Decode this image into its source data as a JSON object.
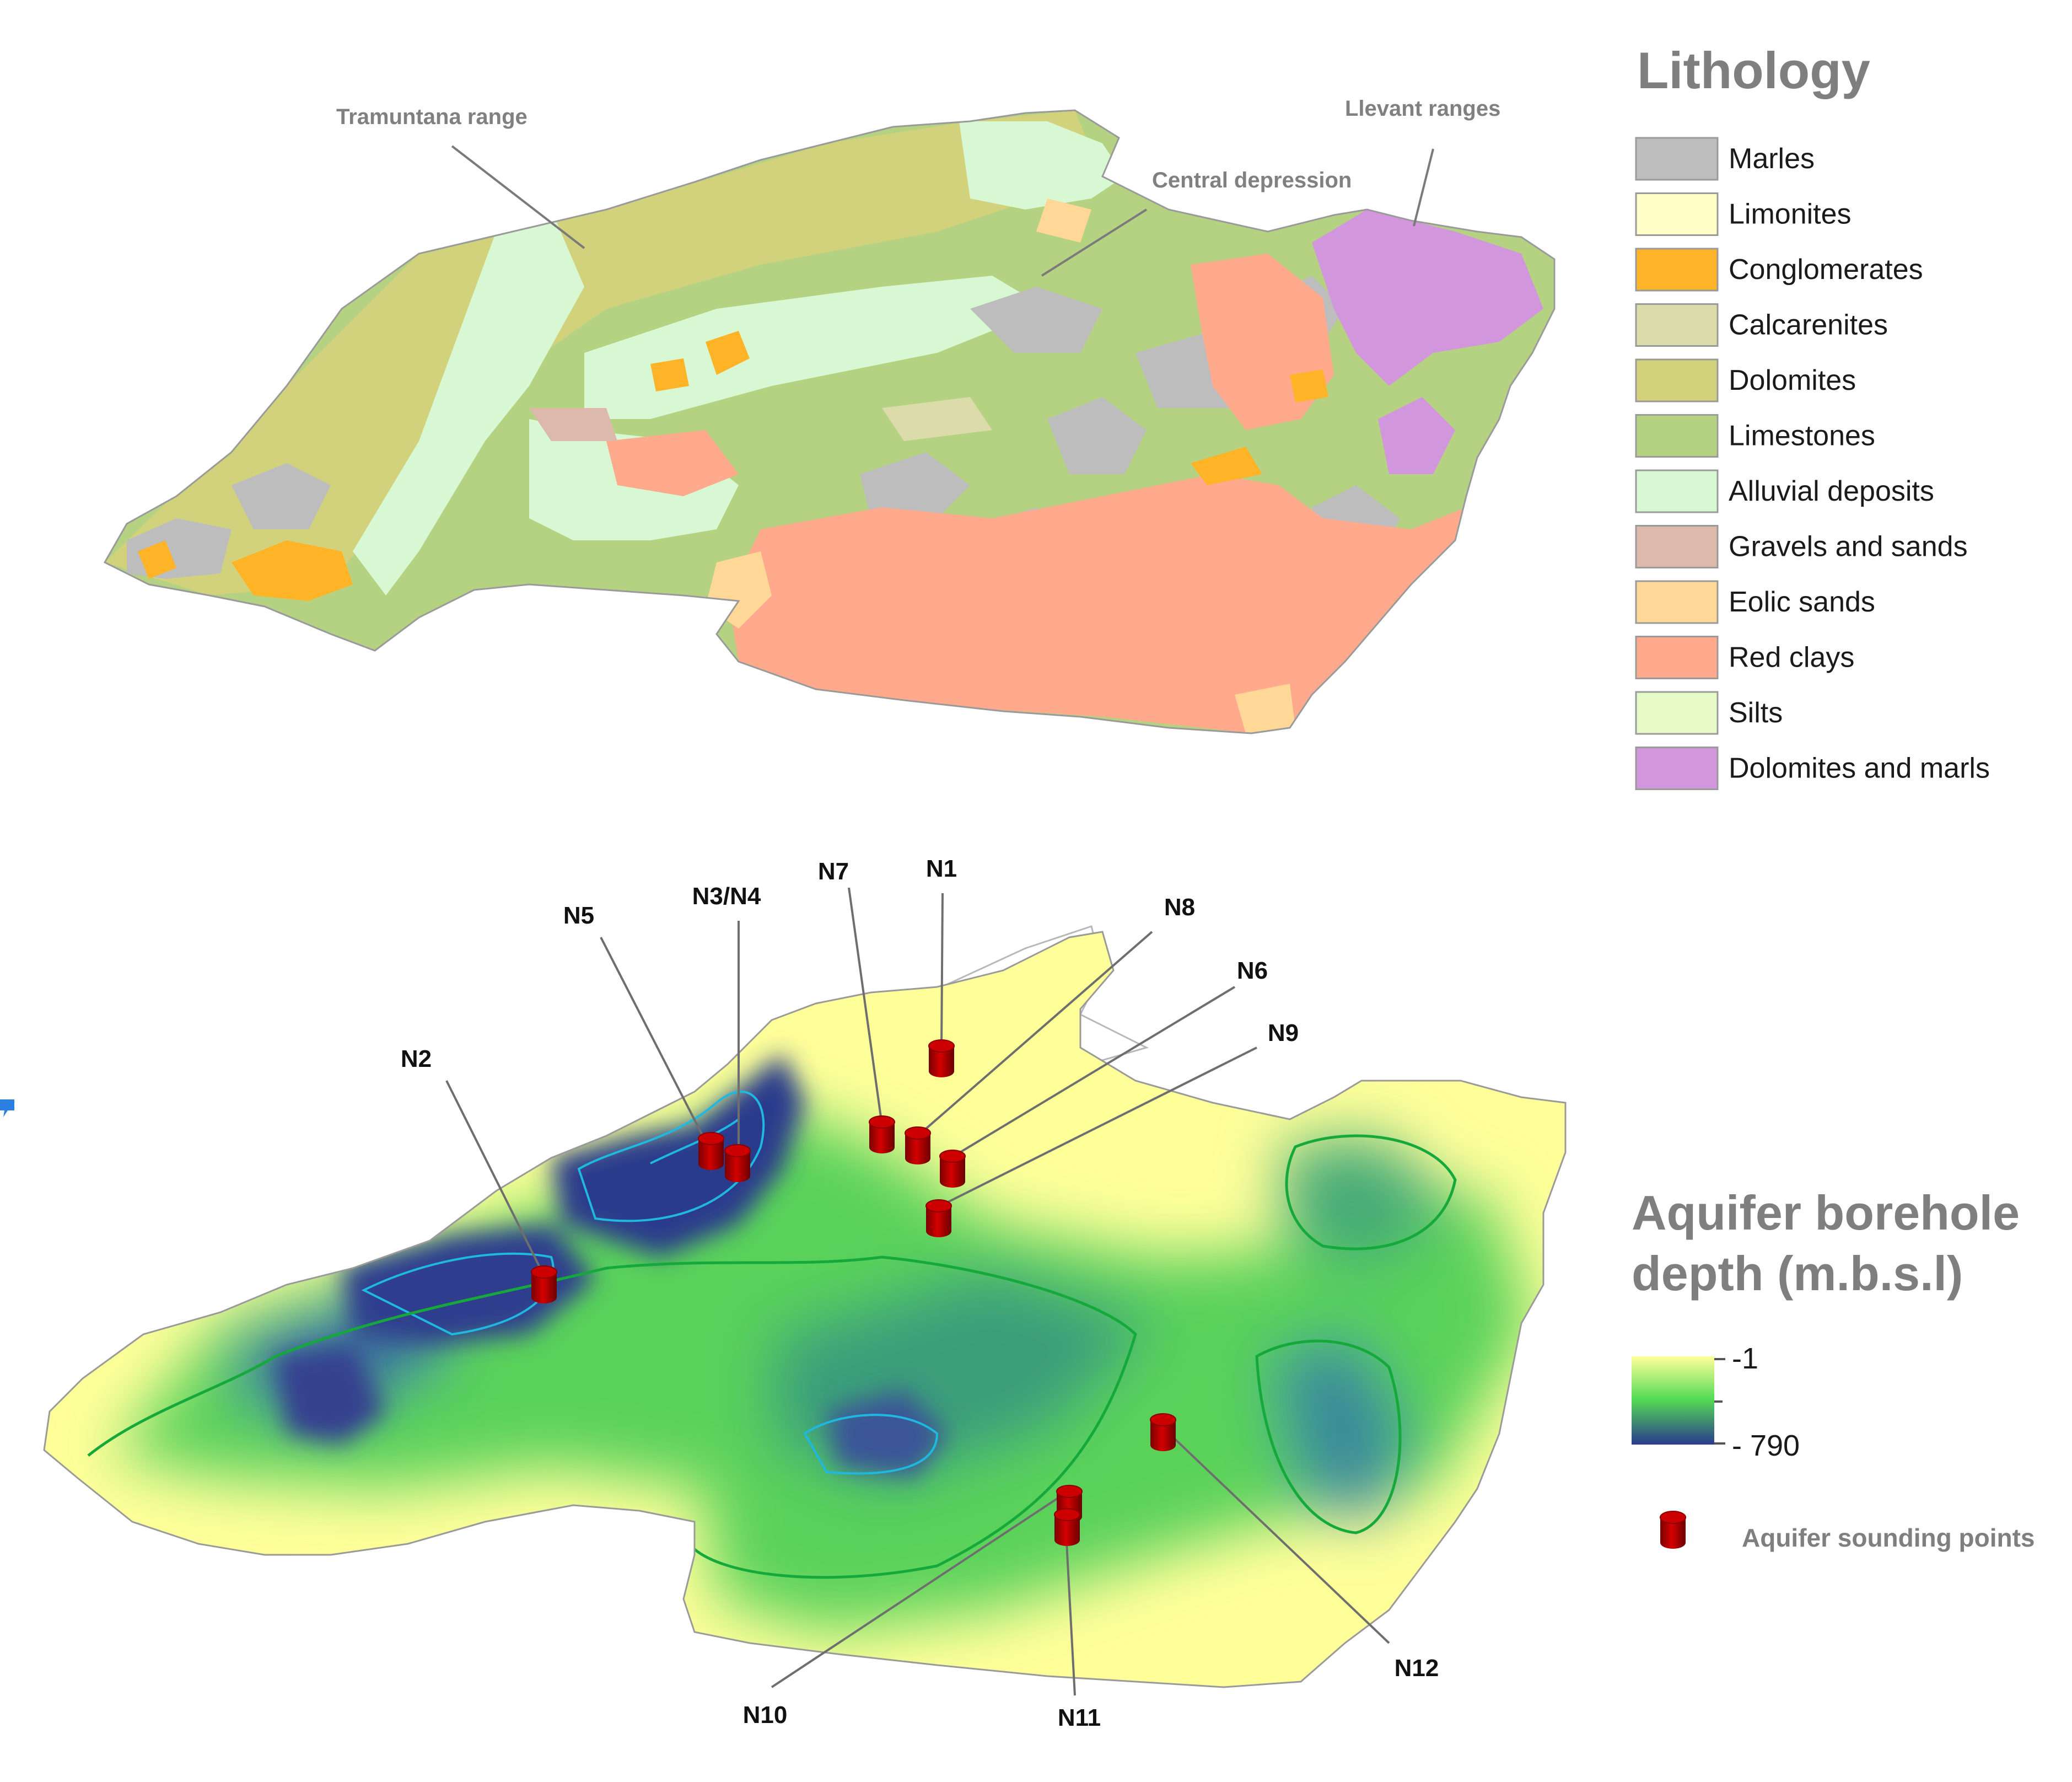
{
  "lithology": {
    "title": "Lithology",
    "classes": [
      {
        "label": "Marles",
        "color": "#bdbdbd"
      },
      {
        "label": "Limonites",
        "color": "#ffffc8"
      },
      {
        "label": "Conglomerates",
        "color": "#ffb428"
      },
      {
        "label": "Calcarenites",
        "color": "#dcdcaa"
      },
      {
        "label": "Dolomites",
        "color": "#d2d27d"
      },
      {
        "label": "Limestones",
        "color": "#b4d282"
      },
      {
        "label": "Alluvial deposits",
        "color": "#d7f8d2"
      },
      {
        "label": "Gravels and sands",
        "color": "#dcb9aa"
      },
      {
        "label": "Eolic sands",
        "color": "#ffd796"
      },
      {
        "label": "Red clays",
        "color": "#ffaa8c"
      },
      {
        "label": "Silts",
        "color": "#e6fac8"
      },
      {
        "label": "Dolomites and marls",
        "color": "#d296dc"
      }
    ],
    "callouts": {
      "tramuntana": "Tramuntana range",
      "central": "Central depression",
      "llevant": "Llevant ranges"
    }
  },
  "depth": {
    "title_line1": "Aquifer borehole",
    "title_line2": "depth (m.b.s.l)",
    "ramp_top_label": "-1",
    "ramp_bottom_label": "- 790",
    "ramp_colors": [
      "#ffff9a",
      "#55dd55",
      "#2a3a8c"
    ],
    "sounding_label": "Aquifer sounding points",
    "marker_color": "#cc0000",
    "boreholes": [
      "N1",
      "N2",
      "N3/N4",
      "N5",
      "N6",
      "N7",
      "N8",
      "N9",
      "N10",
      "N11",
      "N12"
    ]
  }
}
